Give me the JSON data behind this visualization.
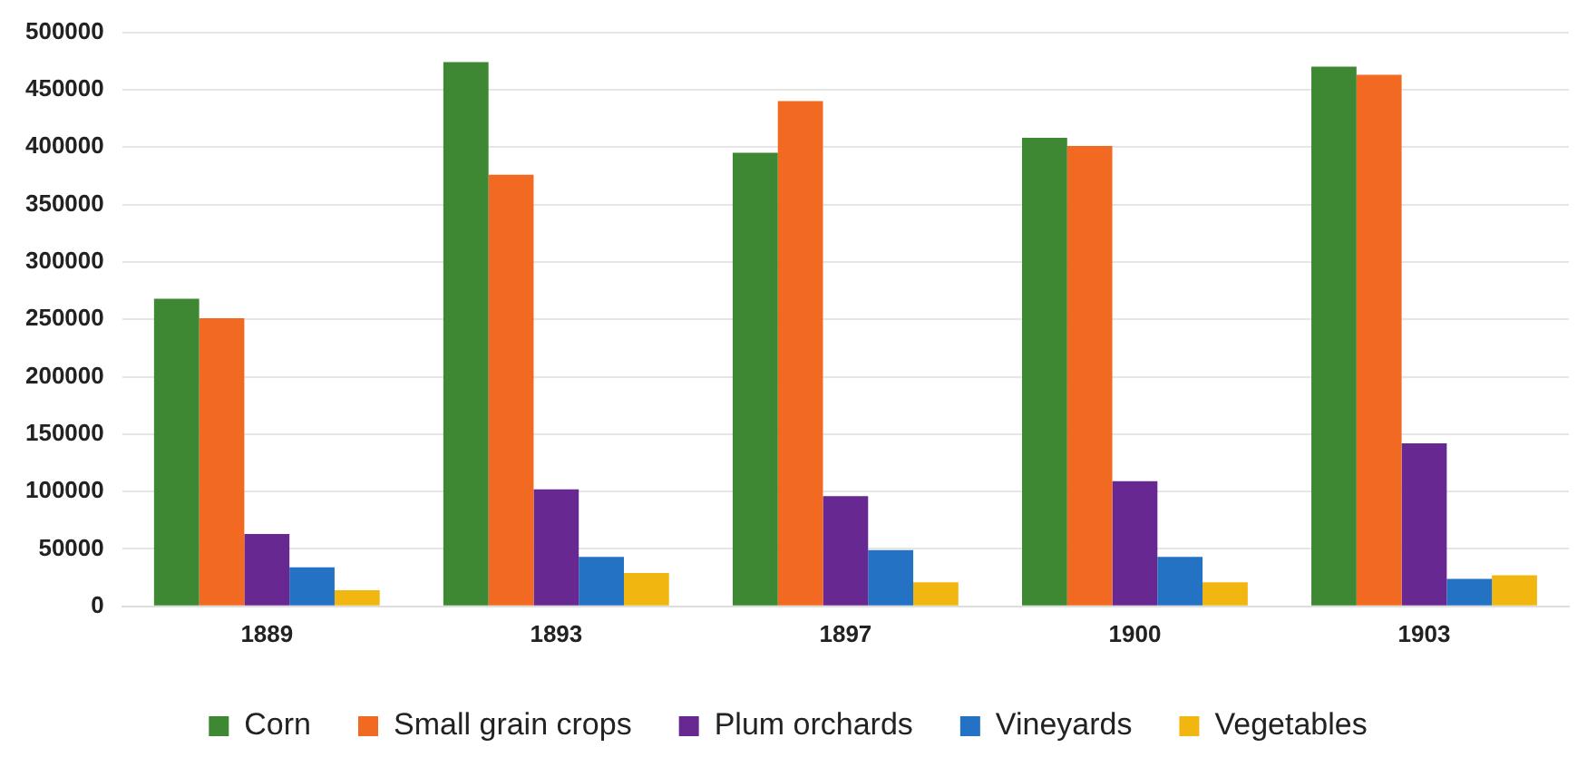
{
  "chart_data": {
    "type": "bar",
    "categories": [
      "1889",
      "1893",
      "1897",
      "1900",
      "1903"
    ],
    "series": [
      {
        "name": "Corn",
        "color": "#3e8733",
        "values": [
          268000,
          474000,
          395000,
          408000,
          470000
        ]
      },
      {
        "name": "Small grain crops",
        "color": "#f26a21",
        "values": [
          251000,
          376000,
          440000,
          401000,
          463000
        ]
      },
      {
        "name": "Plum orchards",
        "color": "#672892",
        "values": [
          63000,
          102000,
          96000,
          109000,
          142000
        ]
      },
      {
        "name": "Vineyards",
        "color": "#2372c4",
        "values": [
          34000,
          43000,
          49000,
          43000,
          24000
        ]
      },
      {
        "name": "Vegetables",
        "color": "#f2b610",
        "values": [
          14000,
          29000,
          21000,
          21000,
          27000
        ]
      }
    ],
    "ylim": [
      0,
      500000
    ],
    "yticks": [
      0,
      50000,
      100000,
      150000,
      200000,
      250000,
      300000,
      350000,
      400000,
      450000,
      500000
    ],
    "grid": "y",
    "legend": "bottom"
  }
}
